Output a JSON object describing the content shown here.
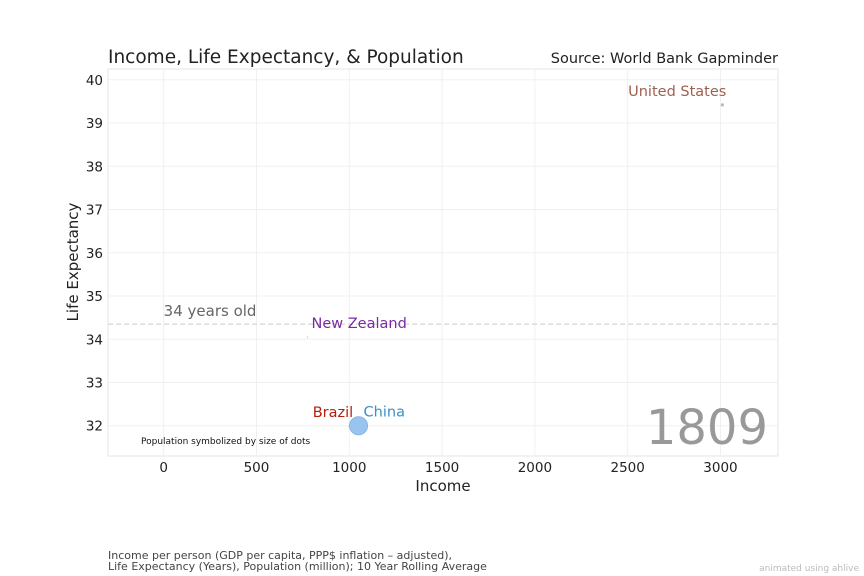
{
  "chart_data": {
    "type": "scatter",
    "title": "Income, Life Expectancy, & Population",
    "source": "Source: World Bank Gapminder",
    "xlabel": "Income",
    "ylabel": "Life Expectancy",
    "xlim": [
      -300,
      3310
    ],
    "ylim": [
      31.3,
      40.25
    ],
    "x_ticks": [
      0,
      500,
      1000,
      1500,
      2000,
      2500,
      3000
    ],
    "y_ticks": [
      32,
      33,
      34,
      35,
      36,
      37,
      38,
      39,
      40
    ],
    "grid": true,
    "year_label": "1809",
    "reference_line": {
      "y": 34.35,
      "label": "34 years old"
    },
    "size_note": "Population symbolized by size of dots",
    "footnote_lines": [
      "Income per person (GDP per capita, PPP$ inflation – adjusted),",
      "Life Expectancy (Years), Population (million); 10 Year Rolling Average"
    ],
    "credit": "animated using ahlive",
    "points": [
      {
        "name": "United States",
        "x": 3010,
        "y": 39.42,
        "color": "#a06050",
        "dot_color": "#bbbbbb",
        "size": 1.6
      },
      {
        "name": "New Zealand",
        "x": 775,
        "y": 34.05,
        "color": "#7b2aa6",
        "dot_color": "#bbbbbb",
        "size": 0.6
      },
      {
        "name": "Brazil",
        "x": 1005,
        "y": 31.99,
        "color": "#b22010",
        "dot_color": "#bbbbbb",
        "size": 1.6
      },
      {
        "name": "China",
        "x": 1050,
        "y": 32.0,
        "color": "#3a8fc8",
        "dot_color": "#99c4f0",
        "size": 9
      }
    ]
  }
}
